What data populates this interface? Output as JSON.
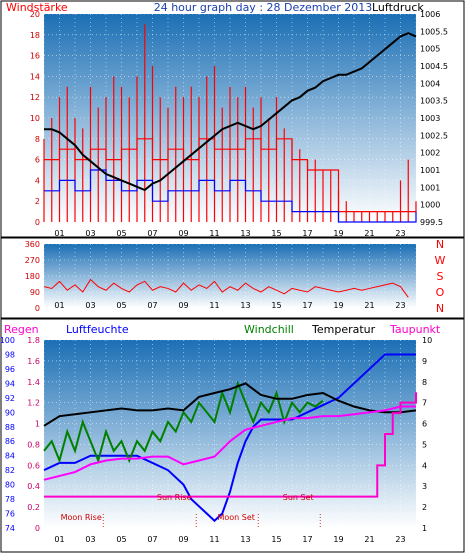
{
  "colors": {
    "wind": "#ff0000",
    "gust_bars": "#ff0000",
    "wind_avg": "#0000ff",
    "pressure": "#000000",
    "direction": "#ff0000",
    "rain": "#ff00cc",
    "humidity": "#0000ff",
    "windchill": "#008000",
    "temperature": "#000000",
    "dewpoint": "#ff00ff",
    "plot_top": "#1b6fb5",
    "plot_bottom": "#ffffff"
  },
  "chart_data": [
    {
      "type": "line",
      "title": "24 hour graph day : 28 Dezember 2013",
      "left_label": "Windstärke",
      "right_label": "Luftdruck",
      "x_ticks": [
        "01",
        "03",
        "05",
        "07",
        "09",
        "11",
        "13",
        "15",
        "17",
        "19",
        "21",
        "23"
      ],
      "x_range": [
        0,
        24
      ],
      "y_left": {
        "range": [
          0,
          20
        ],
        "ticks": [
          "0",
          "2",
          "4",
          "6",
          "8",
          "10",
          "12",
          "14",
          "16",
          "18",
          "20"
        ]
      },
      "y_right": {
        "range": [
          999.5,
          1006
        ],
        "ticks": [
          "999.5",
          "1000",
          "1001",
          "1001",
          "1002",
          "1002.5",
          "1003",
          "1003.5",
          "1004",
          "1004.5",
          "1005",
          "1005.5",
          "1006"
        ]
      },
      "series": [
        {
          "key": "gust",
          "style": "bars",
          "x": [
            0,
            0.5,
            1,
            1.5,
            2,
            2.5,
            3,
            3.5,
            4,
            4.5,
            5,
            5.5,
            6,
            6.5,
            7,
            7.5,
            8,
            8.5,
            9,
            9.5,
            10,
            10.5,
            11,
            11.5,
            12,
            12.5,
            13,
            13.5,
            14,
            14.5,
            15,
            15.5,
            16,
            16.5,
            17,
            17.5,
            18,
            18.5,
            19,
            19.5,
            20,
            20.5,
            21,
            21.5,
            22,
            22.5,
            23,
            23.5
          ],
          "values": [
            8,
            10,
            12,
            13,
            10,
            9,
            13,
            11,
            12,
            14,
            13,
            12,
            14,
            19,
            15,
            12,
            11,
            13,
            12,
            13,
            12,
            14,
            15,
            11,
            13,
            12,
            13,
            11,
            12,
            10,
            12,
            9,
            8,
            7,
            6,
            6,
            5,
            5,
            3,
            2,
            1,
            1,
            1,
            1,
            1,
            1,
            4,
            6
          ]
        },
        {
          "key": "wind",
          "style": "step",
          "x": [
            0,
            1,
            2,
            3,
            4,
            5,
            6,
            7,
            8,
            9,
            10,
            11,
            12,
            13,
            14,
            15,
            16,
            17,
            18,
            19,
            20,
            21,
            22,
            23,
            24
          ],
          "values": [
            6,
            7,
            6,
            7,
            6,
            7,
            8,
            6,
            7,
            6,
            8,
            7,
            7,
            8,
            7,
            8,
            6,
            5,
            5,
            1,
            1,
            1,
            1,
            1,
            2
          ]
        },
        {
          "key": "wind_avg",
          "style": "step",
          "x": [
            0,
            1,
            2,
            3,
            4,
            5,
            6,
            7,
            8,
            9,
            10,
            11,
            12,
            13,
            14,
            15,
            16,
            17,
            18,
            19,
            20,
            21,
            22,
            23,
            24
          ],
          "values": [
            3,
            4,
            3,
            5,
            4,
            3,
            4,
            2,
            3,
            3,
            4,
            3,
            4,
            3,
            2,
            2,
            1,
            1,
            1,
            0,
            0,
            0,
            0,
            0,
            1
          ]
        },
        {
          "key": "pressure",
          "axis": "right",
          "style": "line",
          "x": [
            0,
            0.5,
            1,
            1.5,
            2,
            2.5,
            3,
            3.5,
            4,
            4.5,
            5,
            5.5,
            6,
            6.5,
            7,
            7.5,
            8,
            8.5,
            9,
            9.5,
            10,
            10.5,
            11,
            11.5,
            12,
            12.5,
            13,
            13.5,
            14,
            14.5,
            15,
            15.5,
            16,
            16.5,
            17,
            17.5,
            18,
            18.5,
            19,
            19.5,
            20,
            20.5,
            21,
            21.5,
            22,
            22.5,
            23,
            23.5,
            24
          ],
          "values": [
            1002.4,
            1002.4,
            1002.3,
            1002.1,
            1001.9,
            1001.6,
            1001.4,
            1001.2,
            1001.0,
            1000.9,
            1000.8,
            1000.7,
            1000.6,
            1000.5,
            1000.7,
            1000.8,
            1001.0,
            1001.2,
            1001.4,
            1001.6,
            1001.8,
            1002.0,
            1002.2,
            1002.4,
            1002.5,
            1002.6,
            1002.5,
            1002.4,
            1002.5,
            1002.7,
            1002.9,
            1003.1,
            1003.3,
            1003.4,
            1003.6,
            1003.7,
            1003.9,
            1004.0,
            1004.1,
            1004.1,
            1004.2,
            1004.3,
            1004.5,
            1004.7,
            1004.9,
            1005.1,
            1005.3,
            1005.4,
            1005.3
          ]
        }
      ]
    },
    {
      "type": "scatter",
      "x_ticks": [
        "01",
        "03",
        "05",
        "07",
        "09",
        "11",
        "13",
        "15",
        "17",
        "19",
        "21",
        "23"
      ],
      "x_range": [
        0,
        24
      ],
      "y_left": {
        "range": [
          0,
          360
        ],
        "ticks": [
          "0",
          "90",
          "180",
          "270",
          "360"
        ]
      },
      "right_labels": [
        "N",
        "W",
        "S",
        "O",
        "N"
      ],
      "series": [
        {
          "key": "direction",
          "x": [
            0,
            0.5,
            1,
            1.5,
            2,
            2.5,
            3,
            3.5,
            4,
            4.5,
            5,
            5.5,
            6,
            6.5,
            7,
            7.5,
            8,
            8.5,
            9,
            9.5,
            10,
            10.5,
            11,
            11.5,
            12,
            12.5,
            13,
            13.5,
            14,
            14.5,
            15,
            15.5,
            16,
            16.5,
            17,
            17.5,
            18,
            18.5,
            19,
            19.5,
            20,
            20.5,
            21,
            21.5,
            22,
            22.5,
            23,
            23.5
          ],
          "values": [
            120,
            110,
            150,
            100,
            130,
            90,
            160,
            120,
            100,
            140,
            110,
            90,
            130,
            150,
            100,
            120,
            110,
            90,
            140,
            100,
            130,
            110,
            150,
            90,
            120,
            100,
            140,
            110,
            90,
            120,
            100,
            80,
            110,
            100,
            90,
            120,
            110,
            100,
            90,
            100,
            110,
            100,
            110,
            120,
            130,
            140,
            120,
            60
          ]
        }
      ]
    },
    {
      "type": "line",
      "legend": [
        "Regen",
        "Luftfeuchte",
        "Windchill",
        "Temperatur",
        "Taupunkt"
      ],
      "x_ticks": [
        "01",
        "03",
        "05",
        "07",
        "09",
        "11",
        "13",
        "15",
        "17",
        "19",
        "21",
        "23"
      ],
      "x_range": [
        0,
        24
      ],
      "y_humidity": {
        "range": [
          74,
          100
        ],
        "ticks": [
          "74",
          "76",
          "78",
          "80",
          "82",
          "84",
          "86",
          "88",
          "90",
          "92",
          "94",
          "96",
          "98",
          "100"
        ]
      },
      "y_rain": {
        "range": [
          0,
          1.8
        ],
        "ticks": [
          "0",
          "0.2",
          "0.4",
          "0.6",
          "0.8",
          "1",
          "1.2",
          "1.4",
          "1.6",
          "1.8"
        ]
      },
      "y_temp": {
        "range": [
          0.5,
          10.25
        ],
        "ticks": [
          "1",
          "2",
          "3",
          "4",
          "5",
          "6",
          "7",
          "8",
          "9",
          "10"
        ]
      },
      "annotations": [
        {
          "text": "Moon Rise",
          "x": 2.4
        },
        {
          "text": "Sun Rise",
          "x": 8.4
        },
        {
          "text": "Moon Set",
          "x": 12.4
        },
        {
          "text": "Sun Set",
          "x": 16.4
        }
      ],
      "series": [
        {
          "key": "humidity",
          "axis": "humidity",
          "x": [
            0,
            1,
            2,
            3,
            4,
            5,
            6,
            7,
            8,
            9,
            9.5,
            10,
            10.5,
            11,
            11.5,
            12,
            12.5,
            13,
            13.5,
            14,
            15,
            16,
            17,
            18,
            19,
            20,
            21,
            22,
            23,
            24
          ],
          "values": [
            82,
            83,
            83,
            84,
            84,
            84,
            84,
            83,
            82,
            80,
            78,
            77,
            76,
            75,
            76,
            79,
            83,
            86,
            88,
            89,
            89,
            89,
            90,
            91,
            92,
            94,
            96,
            98,
            98,
            98
          ]
        },
        {
          "key": "windchill",
          "axis": "temp",
          "x": [
            0,
            0.5,
            1,
            1.5,
            2,
            2.5,
            3,
            3.5,
            4,
            4.5,
            5,
            5.5,
            6,
            6.5,
            7,
            7.5,
            8,
            8.5,
            9,
            9.5,
            10,
            10.5,
            11,
            11.5,
            12,
            12.5,
            13,
            13.5,
            14,
            14.5,
            15,
            15.5,
            16,
            16.5,
            17,
            17.5,
            18
          ],
          "values": [
            4.5,
            5.0,
            4.0,
            5.5,
            4.5,
            6.0,
            5.0,
            4.0,
            5.5,
            4.5,
            5.0,
            4.0,
            5.0,
            4.5,
            5.5,
            5.0,
            6.0,
            5.5,
            6.5,
            6.0,
            7.0,
            6.5,
            6.0,
            7.5,
            6.5,
            8.0,
            7.0,
            6.0,
            7.0,
            6.5,
            7.5,
            6.0,
            7.0,
            6.5,
            7.0,
            6.8,
            7.1
          ]
        },
        {
          "key": "temperature",
          "axis": "temp",
          "x": [
            0,
            1,
            2,
            3,
            4,
            5,
            6,
            7,
            8,
            9,
            10,
            11,
            12,
            13,
            14,
            15,
            16,
            17,
            18,
            19,
            20,
            21,
            22,
            23,
            24
          ],
          "values": [
            5.8,
            6.3,
            6.4,
            6.5,
            6.6,
            6.7,
            6.6,
            6.6,
            6.7,
            6.6,
            7.3,
            7.5,
            7.7,
            8.0,
            7.4,
            7.2,
            7.2,
            7.4,
            7.5,
            7.1,
            6.8,
            6.6,
            6.5,
            6.5,
            6.6
          ]
        },
        {
          "key": "dewpoint",
          "axis": "temp",
          "x": [
            0,
            1,
            2,
            3,
            4,
            5,
            6,
            7,
            8,
            9,
            10,
            11,
            12,
            13,
            14,
            15,
            16,
            17,
            18,
            19,
            20,
            21,
            22,
            23,
            24
          ],
          "values": [
            3.0,
            3.2,
            3.4,
            3.8,
            4.0,
            4.1,
            4.1,
            4.2,
            4.2,
            3.8,
            4.0,
            4.2,
            5.0,
            5.6,
            5.8,
            6.0,
            6.2,
            6.2,
            6.3,
            6.3,
            6.4,
            6.5,
            6.6,
            6.8,
            6.8
          ]
        },
        {
          "key": "rain",
          "axis": "rain",
          "style": "step",
          "x": [
            0,
            1,
            2,
            3,
            4,
            5,
            6,
            7,
            8,
            9,
            10,
            11,
            12,
            13,
            14,
            15,
            16,
            17,
            18,
            19,
            20,
            21,
            21.5,
            22,
            22.5,
            23,
            23.5,
            24
          ],
          "values": [
            0.3,
            0.3,
            0.3,
            0.3,
            0.3,
            0.3,
            0.3,
            0.3,
            0.3,
            0.3,
            0.3,
            0.3,
            0.3,
            0.3,
            0.3,
            0.3,
            0.3,
            0.3,
            0.3,
            0.3,
            0.3,
            0.3,
            0.6,
            0.9,
            1.1,
            1.2,
            1.2,
            1.3
          ]
        }
      ]
    }
  ]
}
